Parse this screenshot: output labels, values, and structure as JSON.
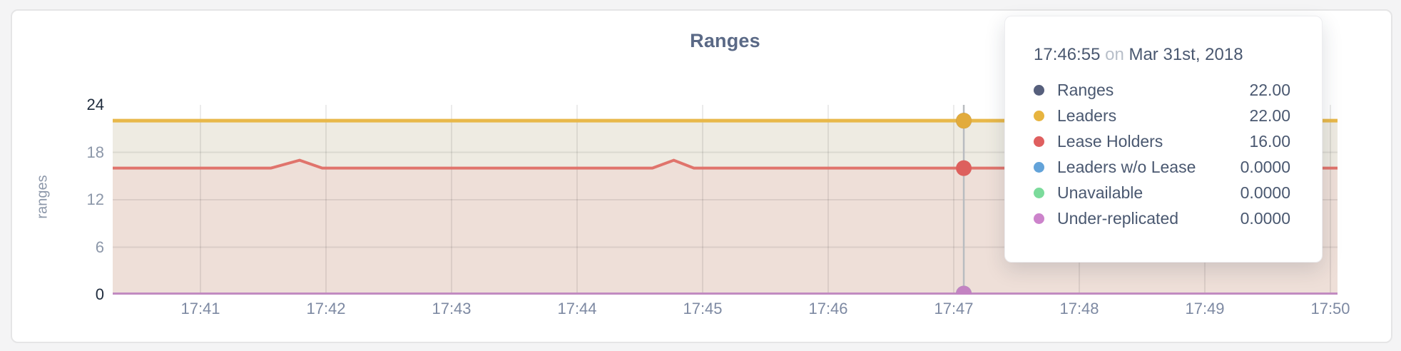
{
  "page_background": "#f4f4f5",
  "card": {
    "background": "#ffffff",
    "border_color": "#e5e5e6"
  },
  "chart_data": {
    "type": "area",
    "title": "Ranges",
    "ylabel": "ranges",
    "xlabel": "",
    "ylim": [
      0,
      24
    ],
    "yticks": [
      0,
      6,
      12,
      18,
      24
    ],
    "yticks_emphasized": [
      0,
      24
    ],
    "xticks": [
      "17:41",
      "17:42",
      "17:43",
      "17:44",
      "17:45",
      "17:46",
      "17:47",
      "17:48",
      "17:49",
      "17:50"
    ],
    "x_unit": "tick_index",
    "x_domain": [
      -0.7,
      9.06
    ],
    "grid": true,
    "gridline_color": "rgba(0,0,0,0.08)",
    "legend_position": "tooltip",
    "series": [
      {
        "name": "Ranges",
        "line_color": "#4e5a74",
        "dot_color": "#4e5a74",
        "line_width": 4,
        "fill_color": null,
        "hover_value": 22,
        "points": [
          [
            -0.7,
            22
          ],
          [
            9.06,
            22
          ]
        ]
      },
      {
        "name": "Leaders",
        "line_color": "#e8b84a",
        "dot_color": "#e2ab3c",
        "line_width": 5,
        "fill_color": "#eeebe2",
        "hover_value": 22,
        "points": [
          [
            -0.7,
            22
          ],
          [
            9.06,
            22
          ]
        ]
      },
      {
        "name": "Lease Holders",
        "line_color": "#e0746c",
        "dot_color": "#dd605d",
        "line_width": 4,
        "fill_color": "#eedfd8",
        "hover_value": 16,
        "points": [
          [
            -0.7,
            16
          ],
          [
            0.56,
            16
          ],
          [
            0.79,
            17
          ],
          [
            0.97,
            16
          ],
          [
            3.6,
            16
          ],
          [
            3.77,
            17
          ],
          [
            3.93,
            16
          ],
          [
            9.06,
            16
          ]
        ]
      },
      {
        "name": "Leaders w/o Lease",
        "line_color": "#63a3d9",
        "dot_color": "#63a3d9",
        "line_width": 2,
        "fill_color": null,
        "hover_value": 0,
        "points": [
          [
            -0.7,
            0
          ],
          [
            9.06,
            0
          ]
        ]
      },
      {
        "name": "Unavailable",
        "line_color": "#7bdb9b",
        "dot_color": "#7bdb9b",
        "line_width": 2,
        "fill_color": null,
        "hover_value": 0,
        "points": [
          [
            -0.7,
            0
          ],
          [
            9.06,
            0
          ]
        ]
      },
      {
        "name": "Under-replicated",
        "line_color": "#c18bc1",
        "dot_color": "#c383c2",
        "line_width": 3,
        "fill_color": null,
        "hover_value": 0,
        "points": [
          [
            -0.7,
            0
          ],
          [
            9.06,
            0
          ]
        ]
      }
    ],
    "hover": {
      "x_tick": 6.08,
      "line_color": "#b9bcc0",
      "dot_radius": 11
    }
  },
  "tooltip": {
    "time": "17:46:55",
    "connector": "on",
    "date": "Mar 31st, 2018",
    "rows": [
      {
        "label": "Ranges",
        "dot_color": "#565f7c",
        "value": "22.00"
      },
      {
        "label": "Leaders",
        "dot_color": "#e7b43f",
        "value": "22.00"
      },
      {
        "label": "Lease Holders",
        "dot_color": "#df5f5f",
        "value": "16.00"
      },
      {
        "label": "Leaders w/o Lease",
        "dot_color": "#63a3d9",
        "value": "0.0000"
      },
      {
        "label": "Unavailable",
        "dot_color": "#7bdb9b",
        "value": "0.0000"
      },
      {
        "label": "Under-replicated",
        "dot_color": "#cc83cb",
        "value": "0.0000"
      }
    ]
  }
}
